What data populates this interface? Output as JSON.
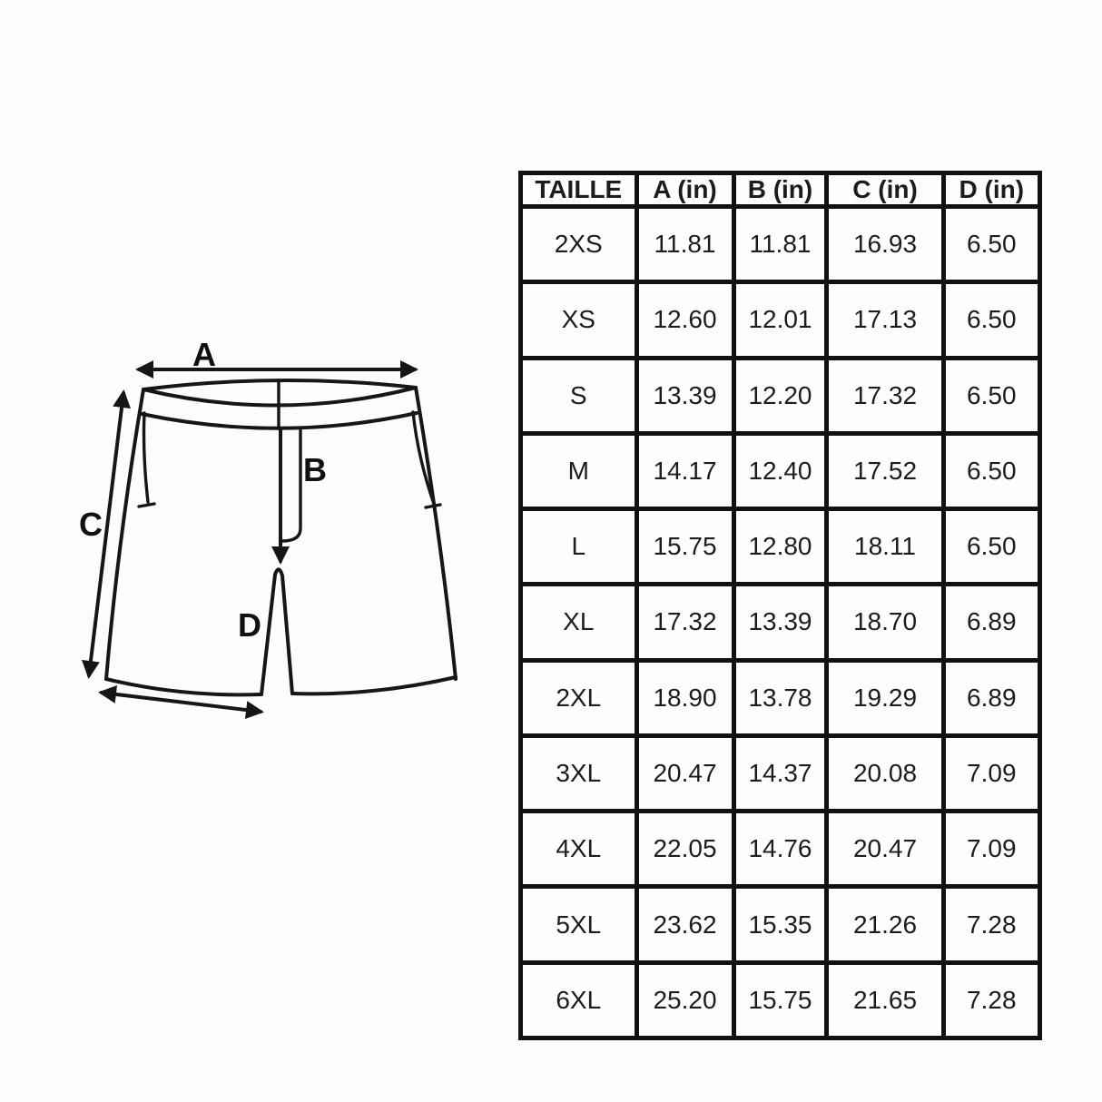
{
  "page": {
    "background": "#fcfcfc"
  },
  "diagram": {
    "stroke_color": "#161616",
    "labels": {
      "a": "A",
      "b": "B",
      "c": "C",
      "d": "D"
    }
  },
  "table": {
    "border_color": "#111111",
    "cell_background": "#fdfdfd",
    "text_color": "#1c1c1c",
    "columns": [
      "TAILLE",
      "A (in)",
      "B (in)",
      "C (in)",
      "D (in)"
    ],
    "rows": [
      [
        "2XS",
        "11.81",
        "11.81",
        "16.93",
        "6.50"
      ],
      [
        "XS",
        "12.60",
        "12.01",
        "17.13",
        "6.50"
      ],
      [
        "S",
        "13.39",
        "12.20",
        "17.32",
        "6.50"
      ],
      [
        "M",
        "14.17",
        "12.40",
        "17.52",
        "6.50"
      ],
      [
        "L",
        "15.75",
        "12.80",
        "18.11",
        "6.50"
      ],
      [
        "XL",
        "17.32",
        "13.39",
        "18.70",
        "6.89"
      ],
      [
        "2XL",
        "18.90",
        "13.78",
        "19.29",
        "6.89"
      ],
      [
        "3XL",
        "20.47",
        "14.37",
        "20.08",
        "7.09"
      ],
      [
        "4XL",
        "22.05",
        "14.76",
        "20.47",
        "7.09"
      ],
      [
        "5XL",
        "23.62",
        "15.35",
        "21.26",
        "7.28"
      ],
      [
        "6XL",
        "25.20",
        "15.75",
        "21.65",
        "7.28"
      ]
    ]
  }
}
